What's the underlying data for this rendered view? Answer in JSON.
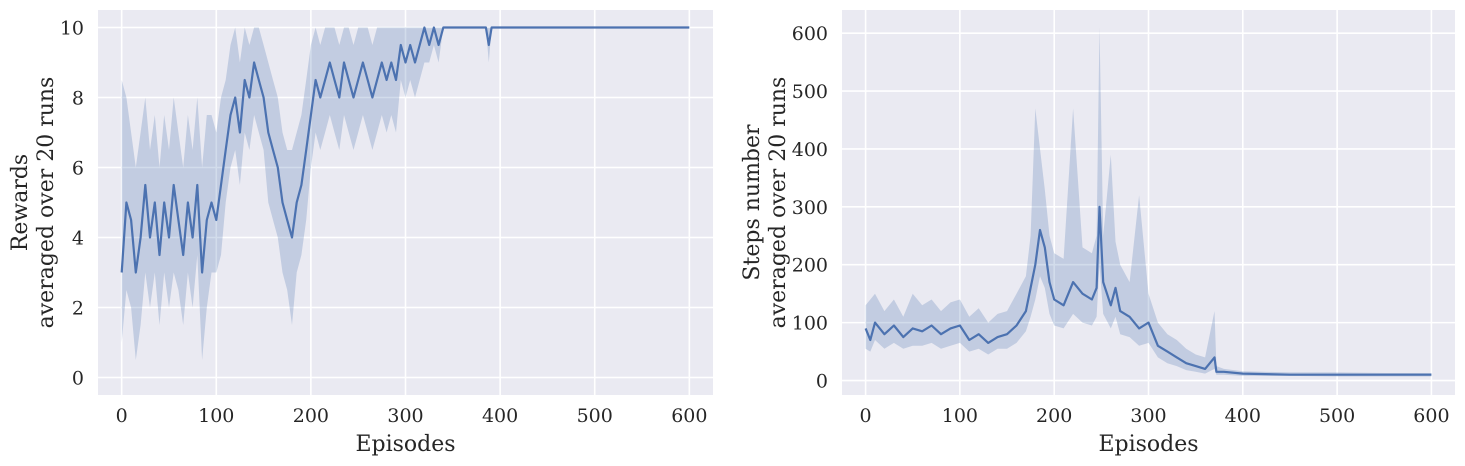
{
  "chart_data": [
    {
      "type": "line",
      "title": "",
      "xlabel": "Episodes",
      "ylabel": [
        "Rewards",
        "averaged over 20 runs"
      ],
      "xlim": [
        -25,
        625
      ],
      "ylim": [
        -0.5,
        10.5
      ],
      "xticks": [
        0,
        100,
        200,
        300,
        400,
        500,
        600
      ],
      "yticks": [
        0,
        2,
        4,
        6,
        8,
        10
      ],
      "grid": true,
      "legend": "none",
      "colors": {
        "line": "#4c72b0",
        "band": "#4c72b0",
        "background": "#eaeaf2",
        "grid": "#ffffff"
      },
      "series": [
        {
          "x": [
            0,
            5,
            10,
            15,
            20,
            25,
            30,
            35,
            40,
            45,
            50,
            55,
            60,
            65,
            70,
            75,
            80,
            85,
            90,
            95,
            100,
            105,
            110,
            115,
            120,
            125,
            130,
            135,
            140,
            145,
            150,
            155,
            160,
            165,
            170,
            175,
            180,
            185,
            190,
            195,
            200,
            205,
            210,
            215,
            220,
            225,
            230,
            235,
            240,
            245,
            250,
            255,
            260,
            265,
            270,
            275,
            280,
            285,
            290,
            295,
            300,
            305,
            310,
            315,
            320,
            325,
            330,
            335,
            340,
            345,
            350,
            380,
            385,
            388,
            391,
            395,
            600
          ],
          "y": [
            3.0,
            5.0,
            4.5,
            3.0,
            4.0,
            5.5,
            4.0,
            5.0,
            3.5,
            5.0,
            4.0,
            5.5,
            4.5,
            3.5,
            5.0,
            4.0,
            5.5,
            3.0,
            4.5,
            5.0,
            4.5,
            5.5,
            6.5,
            7.5,
            8.0,
            7.0,
            8.5,
            8.0,
            9.0,
            8.5,
            8.0,
            7.0,
            6.5,
            6.0,
            5.0,
            4.5,
            4.0,
            5.0,
            5.5,
            6.5,
            7.5,
            8.5,
            8.0,
            8.5,
            9.0,
            8.5,
            8.0,
            9.0,
            8.5,
            8.0,
            8.5,
            9.0,
            8.5,
            8.0,
            8.5,
            9.0,
            8.5,
            9.0,
            8.5,
            9.5,
            9.0,
            9.5,
            9.0,
            9.5,
            10.0,
            9.5,
            10.0,
            9.5,
            10.0,
            10.0,
            10.0,
            10.0,
            10.0,
            9.5,
            10.0,
            10.0,
            10.0
          ],
          "lower": [
            1.0,
            2.5,
            2.0,
            0.5,
            1.5,
            3.0,
            2.0,
            3.0,
            1.5,
            3.0,
            2.0,
            3.0,
            2.5,
            1.5,
            3.0,
            2.0,
            3.5,
            0.5,
            2.0,
            3.0,
            3.0,
            3.5,
            5.0,
            6.0,
            6.5,
            5.5,
            7.0,
            6.5,
            7.5,
            7.0,
            6.5,
            5.0,
            4.5,
            4.0,
            3.0,
            2.5,
            1.5,
            3.0,
            3.5,
            4.5,
            6.0,
            7.0,
            6.5,
            7.0,
            7.5,
            7.0,
            6.5,
            7.5,
            7.0,
            6.5,
            7.0,
            7.5,
            7.0,
            6.5,
            7.0,
            7.5,
            7.0,
            7.5,
            7.0,
            8.5,
            8.0,
            8.5,
            8.0,
            8.5,
            9.0,
            9.0,
            9.5,
            9.0,
            10.0,
            10.0,
            10.0,
            10.0,
            10.0,
            9.0,
            10.0,
            10.0,
            10.0
          ],
          "upper": [
            8.5,
            8.0,
            7.0,
            6.0,
            7.0,
            8.0,
            6.5,
            7.5,
            6.0,
            7.5,
            6.5,
            8.0,
            7.0,
            6.0,
            7.5,
            6.5,
            8.0,
            6.0,
            7.5,
            7.5,
            7.0,
            8.0,
            8.5,
            9.5,
            10.0,
            9.0,
            10.0,
            9.5,
            10.0,
            10.0,
            9.5,
            9.0,
            8.5,
            8.0,
            7.0,
            6.5,
            6.5,
            7.0,
            7.5,
            8.5,
            9.5,
            10.0,
            9.5,
            10.0,
            10.0,
            10.0,
            9.5,
            10.0,
            10.0,
            9.5,
            10.0,
            10.0,
            10.0,
            9.5,
            10.0,
            10.0,
            10.0,
            10.0,
            10.0,
            10.0,
            10.0,
            10.0,
            10.0,
            10.0,
            10.0,
            10.0,
            10.0,
            10.0,
            10.0,
            10.0,
            10.0,
            10.0,
            10.0,
            10.0,
            10.0,
            10.0,
            10.0
          ]
        }
      ]
    },
    {
      "type": "line",
      "title": "",
      "xlabel": "Episodes",
      "ylabel": [
        "Steps number",
        "averaged over 20 runs"
      ],
      "xlim": [
        -25,
        625
      ],
      "ylim": [
        -25,
        640
      ],
      "xticks": [
        0,
        100,
        200,
        300,
        400,
        500,
        600
      ],
      "yticks": [
        0,
        100,
        200,
        300,
        400,
        500,
        600
      ],
      "grid": true,
      "legend": "none",
      "colors": {
        "line": "#4c72b0",
        "band": "#4c72b0",
        "background": "#eaeaf2",
        "grid": "#ffffff"
      },
      "series": [
        {
          "x": [
            0,
            5,
            10,
            20,
            30,
            40,
            50,
            60,
            70,
            80,
            90,
            100,
            110,
            120,
            130,
            140,
            150,
            160,
            170,
            175,
            180,
            185,
            190,
            195,
            200,
            210,
            220,
            230,
            240,
            245,
            248,
            252,
            260,
            265,
            270,
            280,
            290,
            300,
            310,
            320,
            330,
            340,
            350,
            360,
            370,
            372,
            380,
            400,
            450,
            500,
            550,
            600
          ],
          "y": [
            90,
            70,
            100,
            80,
            95,
            75,
            90,
            85,
            95,
            80,
            90,
            95,
            70,
            80,
            65,
            75,
            80,
            95,
            120,
            160,
            200,
            260,
            230,
            170,
            140,
            130,
            170,
            150,
            140,
            160,
            300,
            170,
            130,
            160,
            120,
            110,
            90,
            100,
            60,
            50,
            40,
            30,
            25,
            20,
            40,
            15,
            15,
            12,
            10,
            10,
            10,
            10
          ],
          "lower": [
            55,
            50,
            70,
            55,
            65,
            55,
            60,
            60,
            65,
            55,
            60,
            65,
            50,
            55,
            45,
            55,
            55,
            65,
            85,
            110,
            140,
            180,
            160,
            115,
            95,
            90,
            115,
            100,
            95,
            110,
            200,
            115,
            90,
            110,
            80,
            75,
            60,
            65,
            40,
            30,
            25,
            18,
            15,
            12,
            20,
            10,
            10,
            8,
            8,
            7,
            7,
            7
          ],
          "upper": [
            130,
            140,
            150,
            120,
            140,
            110,
            150,
            130,
            140,
            120,
            135,
            140,
            110,
            125,
            100,
            115,
            120,
            150,
            180,
            250,
            470,
            400,
            330,
            250,
            220,
            210,
            470,
            230,
            220,
            250,
            610,
            250,
            390,
            240,
            200,
            170,
            320,
            150,
            100,
            80,
            70,
            55,
            45,
            40,
            120,
            25,
            20,
            16,
            14,
            14,
            13,
            13
          ]
        }
      ]
    }
  ]
}
